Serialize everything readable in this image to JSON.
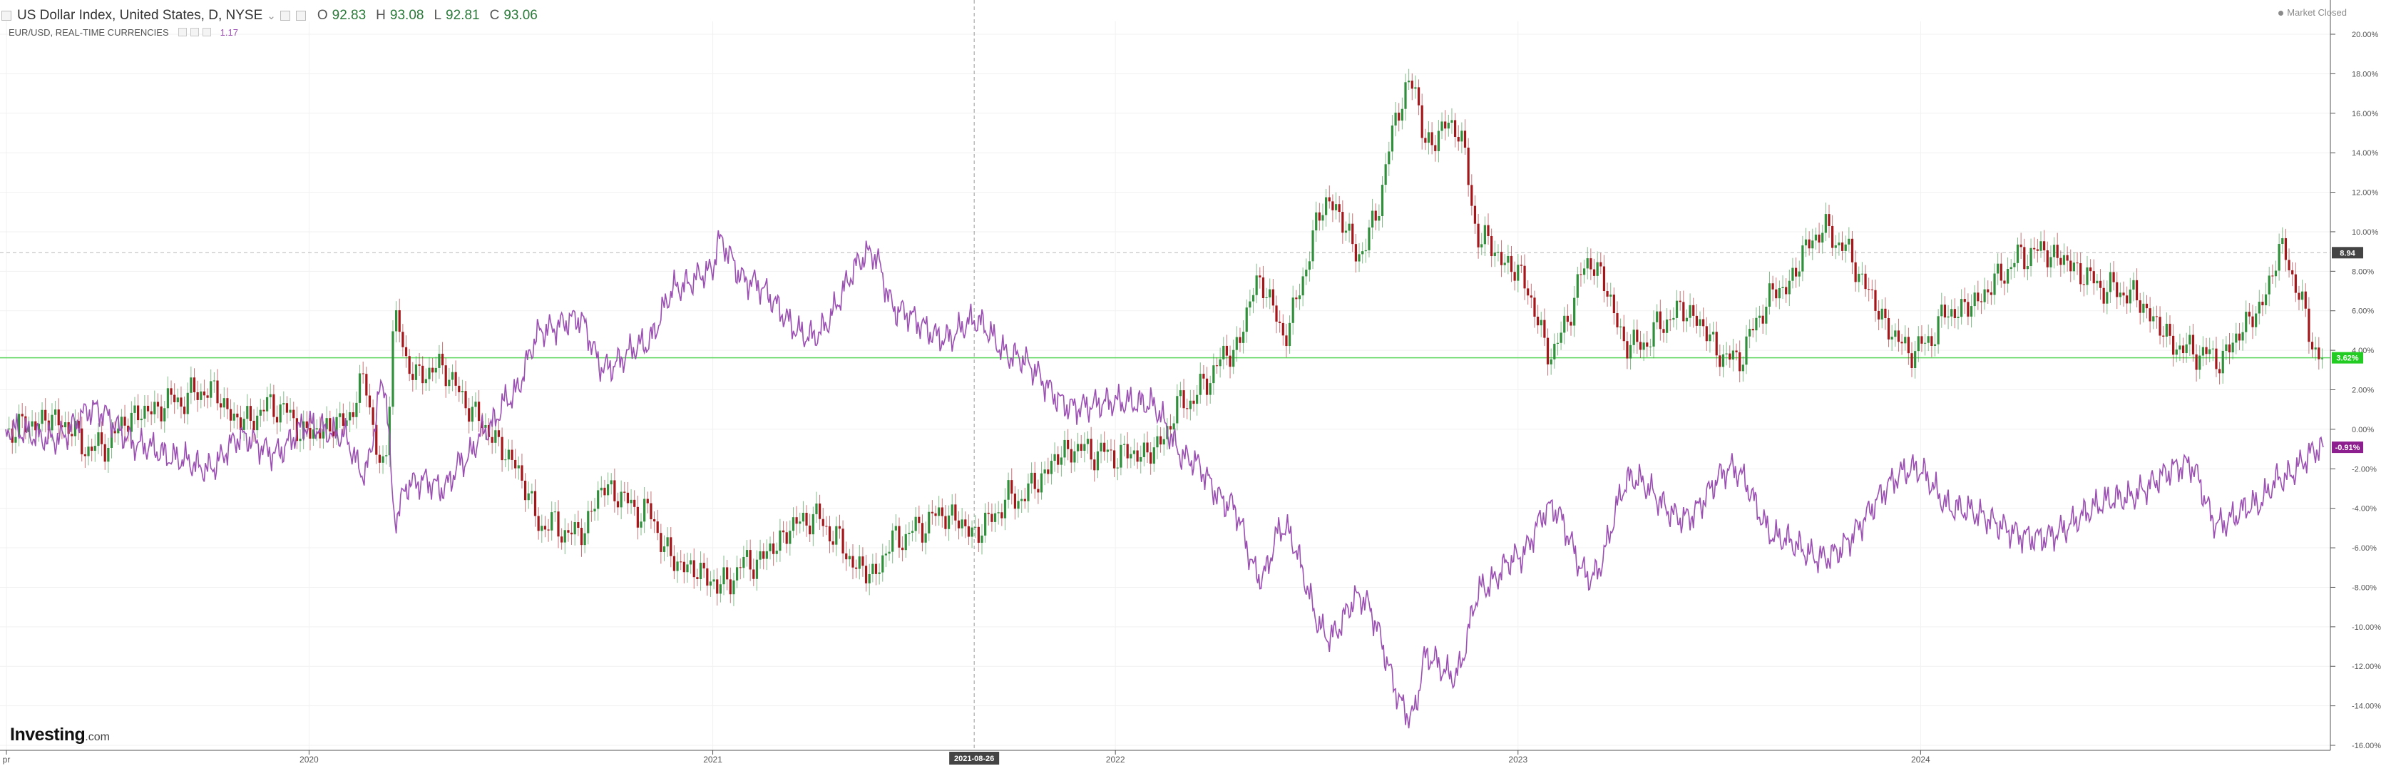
{
  "header": {
    "title": "US Dollar Index, United States, D, NYSE",
    "open_label": "O",
    "open": "92.83",
    "high_label": "H",
    "high": "93.08",
    "low_label": "L",
    "low": "92.81",
    "close_label": "C",
    "close": "93.06",
    "overlay_title": "EUR/USD, REAL-TIME CURRENCIES",
    "overlay_value": "1.17",
    "market_status": "Market Closed"
  },
  "brand": {
    "logo_main": "Investing",
    "logo_domain": ".com"
  },
  "colors": {
    "up": "#2f8f3a",
    "down": "#a4161a",
    "overlay": "#9b4fb3",
    "base_line": "#5cd65c",
    "last_price_badge": "#444444",
    "overlay_badge": "#8e1f8e"
  },
  "chart_data": {
    "type": "line",
    "title": "US Dollar Index, United States, D, NYSE",
    "comparison": "percent change",
    "x_range": [
      "2019-04-01",
      "2024-12-31"
    ],
    "ylim": [
      -16,
      20
    ],
    "y_ticks": [
      "20.00%",
      "18.00%",
      "16.00%",
      "14.00%",
      "12.00%",
      "10.00%",
      "8.00%",
      "6.00%",
      "4.00%",
      "2.00%",
      "0.00%",
      "-2.00%",
      "-4.00%",
      "-6.00%",
      "-8.00%",
      "-10.00%",
      "-12.00%",
      "-14.00%",
      "-16.00%"
    ],
    "x_ticks": [
      {
        "label": "pr",
        "date": "2019-04-01"
      },
      {
        "label": "2020",
        "date": "2020-01-01"
      },
      {
        "label": "2021",
        "date": "2021-01-01"
      },
      {
        "label": "2022",
        "date": "2022-01-01"
      },
      {
        "label": "2023",
        "date": "2023-01-01"
      },
      {
        "label": "2024",
        "date": "2024-01-01"
      }
    ],
    "crosshair": {
      "date": "2021-08-26",
      "label": "2021-08-26",
      "value": "8.94"
    },
    "badges": [
      {
        "label": "3.62%",
        "value": 3.62
      },
      {
        "label": "-0.91%",
        "value": -0.91
      }
    ],
    "grid": true,
    "legend": "top-left",
    "series": [
      {
        "name": "US Dollar Index",
        "style": "candles",
        "points": [
          [
            "2019-04-01",
            0.0
          ],
          [
            "2019-05-15",
            0.5
          ],
          [
            "2019-06-20",
            -1.0
          ],
          [
            "2019-08-01",
            0.8
          ],
          [
            "2019-09-05",
            1.5
          ],
          [
            "2019-10-01",
            2.0
          ],
          [
            "2019-11-01",
            0.4
          ],
          [
            "2019-12-01",
            1.2
          ],
          [
            "2019-12-31",
            -0.2
          ],
          [
            "2020-01-31",
            0.3
          ],
          [
            "2020-02-20",
            2.2
          ],
          [
            "2020-03-09",
            -2.3
          ],
          [
            "2020-03-19",
            5.9
          ],
          [
            "2020-03-31",
            3.0
          ],
          [
            "2020-04-15",
            2.8
          ],
          [
            "2020-05-01",
            3.2
          ],
          [
            "2020-05-20",
            1.5
          ],
          [
            "2020-06-10",
            0.0
          ],
          [
            "2020-07-01",
            -1.5
          ],
          [
            "2020-07-31",
            -4.8
          ],
          [
            "2020-09-01",
            -5.3
          ],
          [
            "2020-09-25",
            -3.0
          ],
          [
            "2020-10-31",
            -4.2
          ],
          [
            "2020-11-30",
            -6.8
          ],
          [
            "2020-12-31",
            -7.5
          ],
          [
            "2021-01-06",
            -8.0
          ],
          [
            "2021-02-01",
            -6.8
          ],
          [
            "2021-03-31",
            -4.5
          ],
          [
            "2021-05-25",
            -7.3
          ],
          [
            "2021-06-17",
            -5.5
          ],
          [
            "2021-07-31",
            -4.3
          ],
          [
            "2021-08-26",
            -5.2
          ],
          [
            "2021-09-30",
            -3.5
          ],
          [
            "2021-11-25",
            -1.0
          ],
          [
            "2021-12-31",
            -1.3
          ],
          [
            "2022-01-31",
            -1.2
          ],
          [
            "2022-03-08",
            1.5
          ],
          [
            "2022-04-15",
            3.8
          ],
          [
            "2022-05-13",
            7.5
          ],
          [
            "2022-06-01",
            5.0
          ],
          [
            "2022-07-14",
            11.5
          ],
          [
            "2022-08-10",
            9.0
          ],
          [
            "2022-09-27",
            17.5
          ],
          [
            "2022-10-10",
            14.5
          ],
          [
            "2022-11-04",
            15.5
          ],
          [
            "2022-11-30",
            9.5
          ],
          [
            "2022-12-31",
            8.0
          ],
          [
            "2023-01-31",
            4.0
          ],
          [
            "2023-03-08",
            8.4
          ],
          [
            "2023-04-14",
            4.2
          ],
          [
            "2023-05-31",
            6.0
          ],
          [
            "2023-07-14",
            3.5
          ],
          [
            "2023-08-25",
            7.0
          ],
          [
            "2023-10-03",
            10.0
          ],
          [
            "2023-12-27",
            4.0
          ],
          [
            "2024-01-31",
            6.0
          ],
          [
            "2024-04-16",
            9.0
          ],
          [
            "2024-06-30",
            7.0
          ],
          [
            "2024-08-31",
            4.0
          ],
          [
            "2024-09-27",
            3.6
          ],
          [
            "2024-10-31",
            5.8
          ],
          [
            "2024-11-22",
            8.9
          ],
          [
            "2024-12-31",
            3.62
          ]
        ]
      },
      {
        "name": "EUR/USD",
        "style": "line",
        "points": [
          [
            "2019-04-01",
            0.0
          ],
          [
            "2019-05-15",
            -0.5
          ],
          [
            "2019-06-20",
            1.0
          ],
          [
            "2019-08-01",
            -0.8
          ],
          [
            "2019-09-05",
            -1.5
          ],
          [
            "2019-10-01",
            -2.0
          ],
          [
            "2019-11-01",
            -0.4
          ],
          [
            "2019-12-01",
            -1.2
          ],
          [
            "2019-12-31",
            0.2
          ],
          [
            "2020-01-31",
            -0.3
          ],
          [
            "2020-02-20",
            -2.2
          ],
          [
            "2020-03-09",
            2.3
          ],
          [
            "2020-03-19",
            -4.4
          ],
          [
            "2020-03-31",
            -2.8
          ],
          [
            "2020-04-15",
            -2.6
          ],
          [
            "2020-05-01",
            -3.0
          ],
          [
            "2020-05-20",
            -1.6
          ],
          [
            "2020-06-10",
            0.0
          ],
          [
            "2020-07-01",
            1.6
          ],
          [
            "2020-07-31",
            5.0
          ],
          [
            "2020-09-01",
            5.6
          ],
          [
            "2020-09-25",
            3.1
          ],
          [
            "2020-10-31",
            4.3
          ],
          [
            "2020-11-30",
            7.2
          ],
          [
            "2020-12-31",
            8.0
          ],
          [
            "2021-01-06",
            9.5
          ],
          [
            "2021-02-01",
            7.5
          ],
          [
            "2021-03-31",
            4.7
          ],
          [
            "2021-05-25",
            8.9
          ],
          [
            "2021-06-17",
            6.0
          ],
          [
            "2021-07-31",
            4.6
          ],
          [
            "2021-08-26",
            5.5
          ],
          [
            "2021-09-30",
            3.7
          ],
          [
            "2021-11-25",
            1.1
          ],
          [
            "2021-12-31",
            1.4
          ],
          [
            "2022-01-31",
            1.3
          ],
          [
            "2022-03-08",
            -1.5
          ],
          [
            "2022-04-15",
            -3.8
          ],
          [
            "2022-05-13",
            -7.5
          ],
          [
            "2022-06-01",
            -5.0
          ],
          [
            "2022-07-14",
            -10.5
          ],
          [
            "2022-08-10",
            -8.5
          ],
          [
            "2022-09-27",
            -14.5
          ],
          [
            "2022-10-10",
            -11.5
          ],
          [
            "2022-11-04",
            -12.5
          ],
          [
            "2022-11-30",
            -8.0
          ],
          [
            "2022-12-31",
            -6.5
          ],
          [
            "2023-01-31",
            -4.0
          ],
          [
            "2023-03-08",
            -7.5
          ],
          [
            "2023-04-14",
            -2.5
          ],
          [
            "2023-05-31",
            -4.5
          ],
          [
            "2023-07-14",
            -2.0
          ],
          [
            "2023-08-25",
            -5.5
          ],
          [
            "2023-10-03",
            -6.5
          ],
          [
            "2023-12-27",
            -2.0
          ],
          [
            "2024-01-31",
            -4.0
          ],
          [
            "2024-04-16",
            -5.5
          ],
          [
            "2024-06-30",
            -3.5
          ],
          [
            "2024-08-31",
            -1.8
          ],
          [
            "2024-09-27",
            -4.8
          ],
          [
            "2024-10-31",
            -3.8
          ],
          [
            "2024-11-22",
            -2.5
          ],
          [
            "2024-12-31",
            -0.91
          ]
        ]
      }
    ]
  }
}
